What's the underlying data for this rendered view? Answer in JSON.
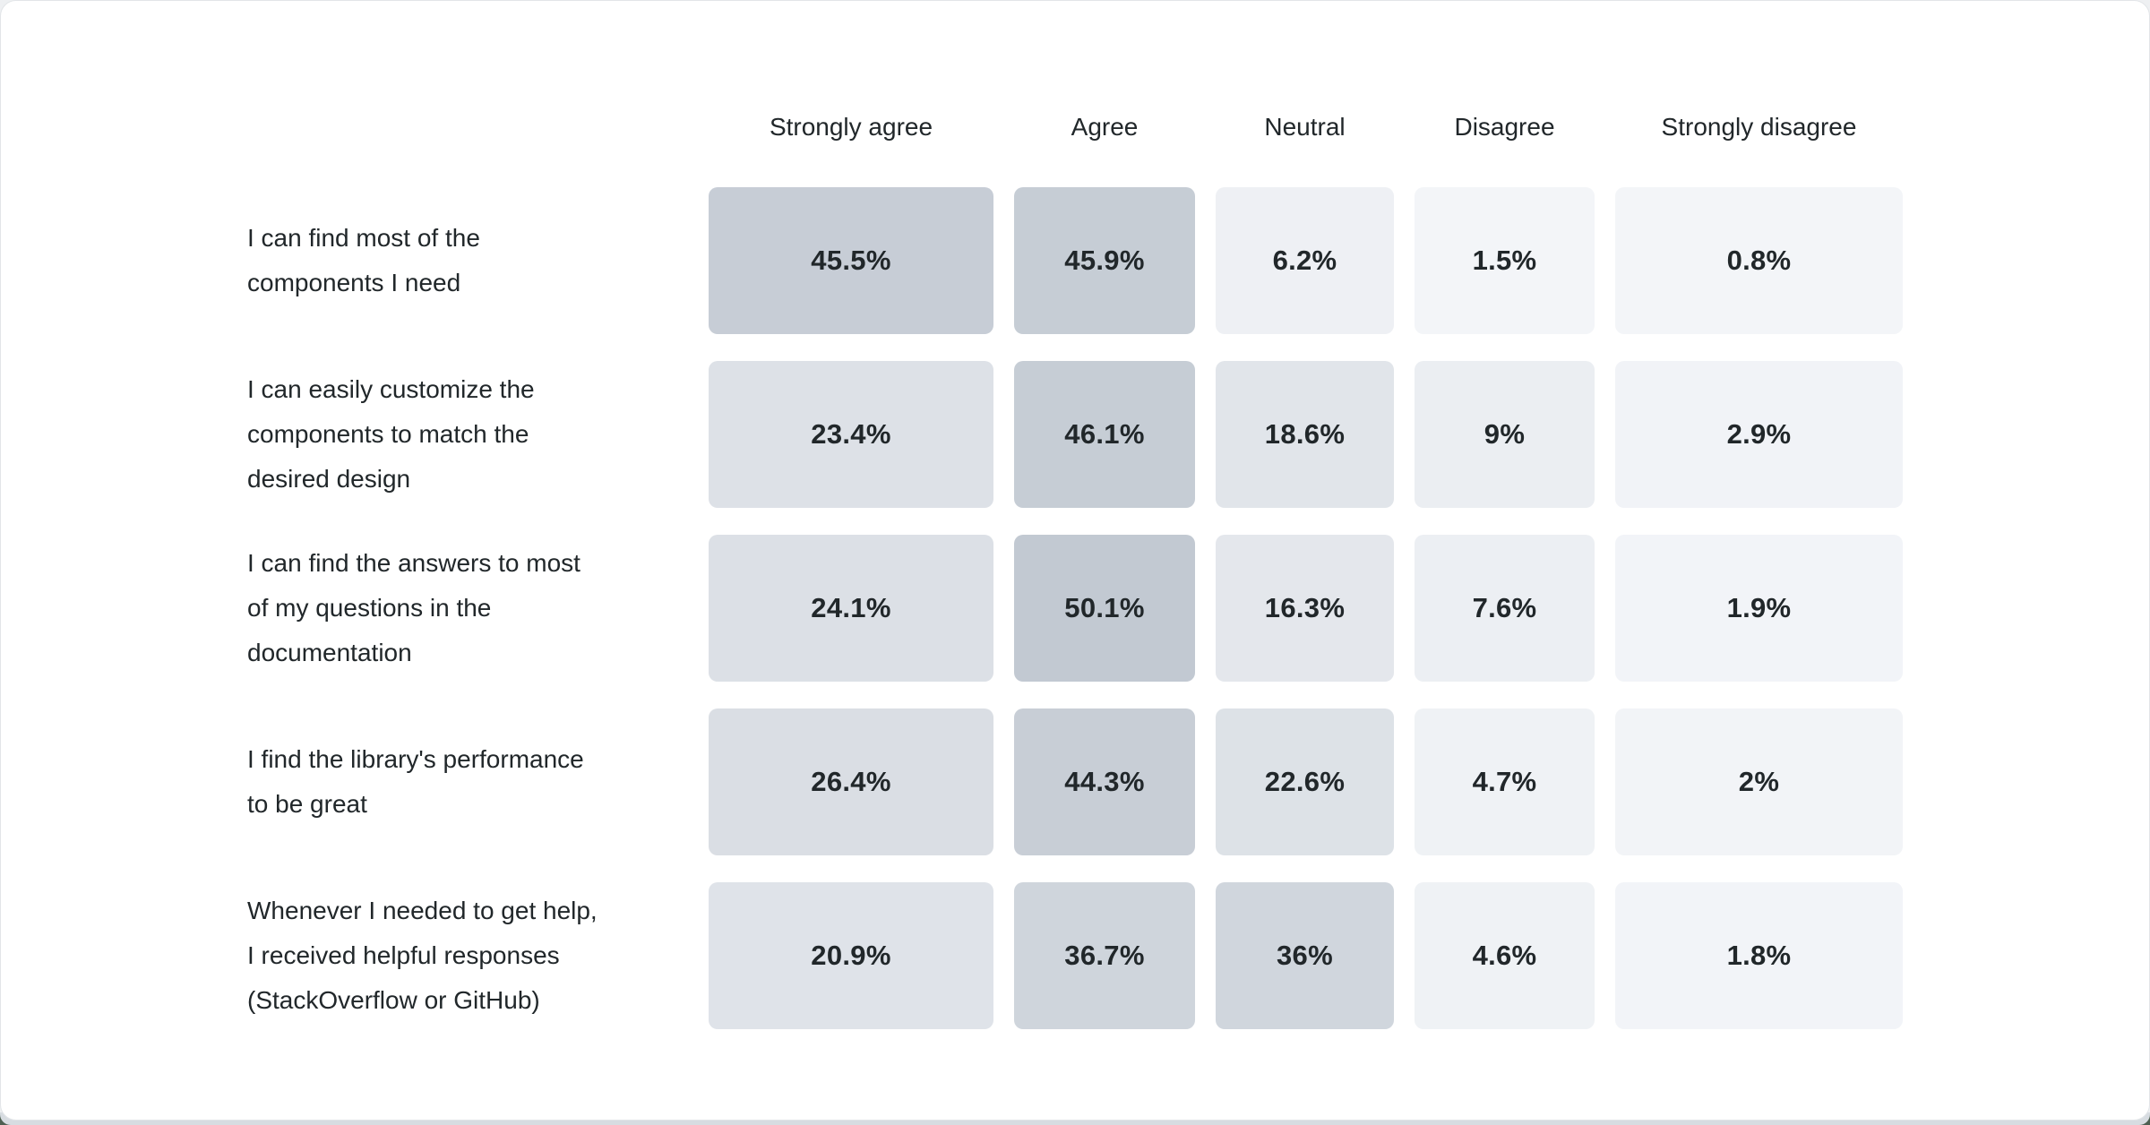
{
  "chart_data": {
    "type": "heatmap",
    "title": "",
    "columns": [
      "Strongly agree",
      "Agree",
      "Neutral",
      "Disagree",
      "Strongly disagree"
    ],
    "rows": [
      {
        "label": "I can find most of the components I need",
        "values": [
          45.5,
          45.9,
          6.2,
          1.5,
          0.8
        ]
      },
      {
        "label": "I can easily customize the components to match the desired design",
        "values": [
          23.4,
          46.1,
          18.6,
          9,
          2.9
        ]
      },
      {
        "label": "I can find the answers to most of my questions in the documentation",
        "values": [
          24.1,
          50.1,
          16.3,
          7.6,
          1.9
        ]
      },
      {
        "label": "I find the library's performance to be great",
        "values": [
          26.4,
          44.3,
          22.6,
          4.7,
          2
        ]
      },
      {
        "label": "Whenever I needed to get help, I received helpful responses (StackOverflow or GitHub)",
        "values": [
          20.9,
          36.7,
          36,
          4.6,
          1.8
        ]
      }
    ],
    "value_format": "percent",
    "legend_position": "none",
    "grid": false,
    "scale": {
      "min": 0,
      "max": 50,
      "low_color": "#f4f6f9",
      "high_color": "#c2c9d2"
    }
  },
  "table": {
    "columns": [
      "Strongly agree",
      "Agree",
      "Neutral",
      "Disagree",
      "Strongly disagree"
    ],
    "rows": [
      {
        "label": "I can find most of the\ncomponents I need",
        "values": [
          {
            "text": "45.5%",
            "value": 45.5
          },
          {
            "text": "45.9%",
            "value": 45.9
          },
          {
            "text": "6.2%",
            "value": 6.2
          },
          {
            "text": "1.5%",
            "value": 1.5
          },
          {
            "text": "0.8%",
            "value": 0.8
          }
        ]
      },
      {
        "label": "I can easily customize the\ncomponents to match the\ndesired design",
        "values": [
          {
            "text": "23.4%",
            "value": 23.4
          },
          {
            "text": "46.1%",
            "value": 46.1
          },
          {
            "text": "18.6%",
            "value": 18.6
          },
          {
            "text": "9%",
            "value": 9
          },
          {
            "text": "2.9%",
            "value": 2.9
          }
        ]
      },
      {
        "label": "I can find the answers to most\nof my questions in the\ndocumentation",
        "values": [
          {
            "text": "24.1%",
            "value": 24.1
          },
          {
            "text": "50.1%",
            "value": 50.1
          },
          {
            "text": "16.3%",
            "value": 16.3
          },
          {
            "text": "7.6%",
            "value": 7.6
          },
          {
            "text": "1.9%",
            "value": 1.9
          }
        ]
      },
      {
        "label": "I find the library's performance\nto be great",
        "values": [
          {
            "text": "26.4%",
            "value": 26.4
          },
          {
            "text": "44.3%",
            "value": 44.3
          },
          {
            "text": "22.6%",
            "value": 22.6
          },
          {
            "text": "4.7%",
            "value": 4.7
          },
          {
            "text": "2%",
            "value": 2
          }
        ]
      },
      {
        "label": "Whenever I needed to get help,\nI received helpful responses\n(StackOverflow or GitHub)",
        "values": [
          {
            "text": "20.9%",
            "value": 20.9
          },
          {
            "text": "36.7%",
            "value": 36.7
          },
          {
            "text": "36%",
            "value": 36
          },
          {
            "text": "4.6%",
            "value": 4.6
          },
          {
            "text": "1.8%",
            "value": 1.8
          }
        ]
      }
    ]
  },
  "colors": {
    "card_bg": "#ffffff",
    "card_border": "#e2e5e8",
    "text": "#21272a",
    "cell_scale_low": "#f4f6f9",
    "cell_scale_high": "#c2c9d2",
    "cell_scale_max_value": 50,
    "bottom_strip": "#d7dce1",
    "desktop_bg": "#4e6052"
  }
}
